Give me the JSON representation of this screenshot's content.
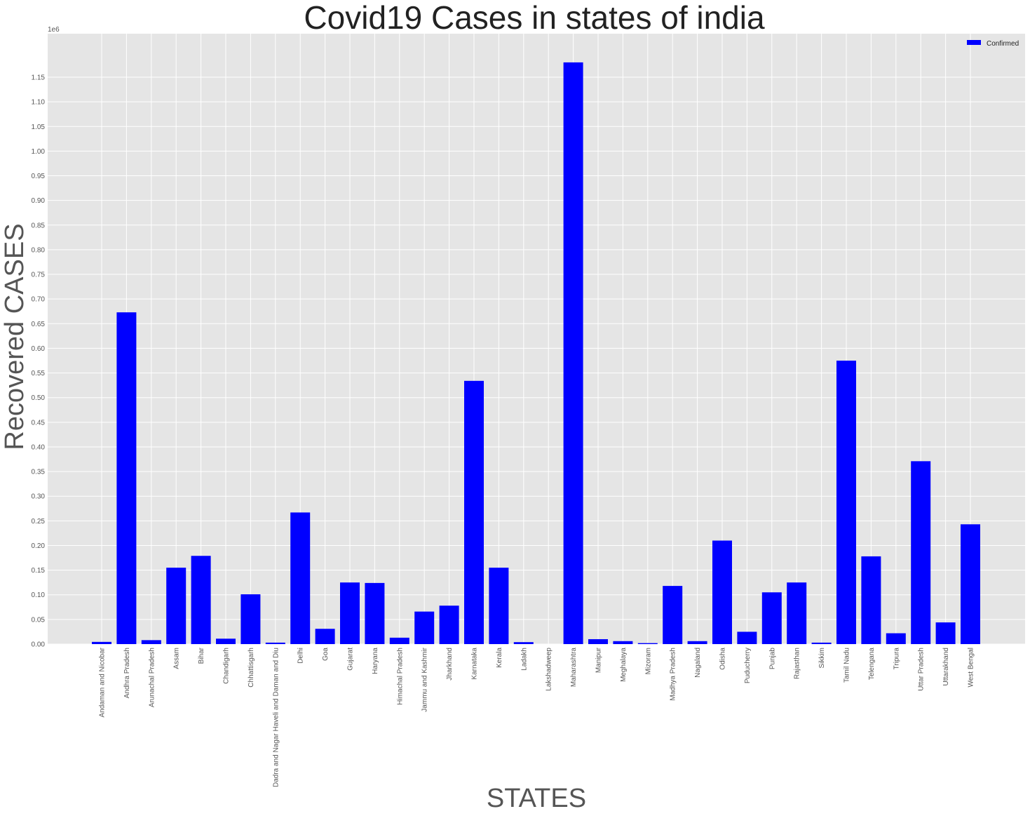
{
  "chart_data": {
    "type": "bar",
    "title": "Covid19 Cases in states of india",
    "xlabel": "STATES",
    "ylabel": "Recovered CASES",
    "y_offset_label": "1e6",
    "ylim": [
      0,
      1.25
    ],
    "yticks": [
      "0.00",
      "0.05",
      "0.10",
      "0.15",
      "0.20",
      "0.25",
      "0.30",
      "0.35",
      "0.40",
      "0.45",
      "0.50",
      "0.55",
      "0.60",
      "0.65",
      "0.70",
      "0.75",
      "0.80",
      "0.85",
      "0.90",
      "0.95",
      "1.00",
      "1.05",
      "1.10",
      "1.15"
    ],
    "grid": true,
    "legend_position": "top-right",
    "series": [
      {
        "name": "Confirmed",
        "color": "#0000ff",
        "values": [
          0.0045,
          0.673,
          0.008,
          0.155,
          0.179,
          0.011,
          0.101,
          0.003,
          0.267,
          0.031,
          0.125,
          0.124,
          0.013,
          0.066,
          0.078,
          0.534,
          0.155,
          0.004,
          0.0,
          1.18,
          0.01,
          0.006,
          0.002,
          0.118,
          0.006,
          0.21,
          0.025,
          0.105,
          0.125,
          0.003,
          0.575,
          0.178,
          0.022,
          0.371,
          0.044,
          0.243
        ]
      }
    ],
    "categories": [
      "Andaman and Nicobar",
      "Andhra Pradesh",
      "Arunachal Pradesh",
      "Assam",
      "Bihar",
      "Chandigarh",
      "Chhattisgarh",
      "Dadra and Nagar Haveli and Daman and Diu",
      "Delhi",
      "Goa",
      "Gujarat",
      "Haryana",
      "Himachal Pradesh",
      "Jammu and Kashmir",
      "Jharkhand",
      "Karnataka",
      "Kerala",
      "Ladakh",
      "Lakshadweep",
      "Maharashtra",
      "Manipur",
      "Meghalaya",
      "Mizoram",
      "Madhya Pradesh",
      "Nagaland",
      "Odisha",
      "Puducherry",
      "Punjab",
      "Rajasthan",
      "Sikkim",
      "Tamil Nadu",
      "Telengana",
      "Tripura",
      "Uttar Pradesh",
      "Uttarakhand",
      "West Bengal"
    ]
  }
}
